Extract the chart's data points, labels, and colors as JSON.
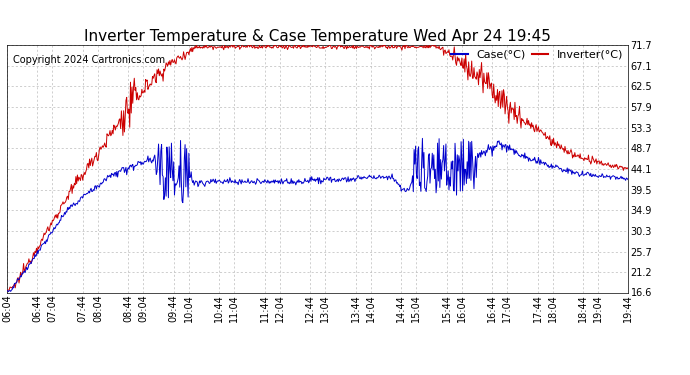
{
  "title": "Inverter Temperature & Case Temperature Wed Apr 24 19:45",
  "copyright": "Copyright 2024 Cartronics.com",
  "legend_case": "Case(°C)",
  "legend_inverter": "Inverter(°C)",
  "case_color": "#0000cc",
  "inverter_color": "#cc0000",
  "background_color": "#ffffff",
  "grid_color": "#bbbbbb",
  "ylim": [
    16.6,
    71.7
  ],
  "yticks": [
    16.6,
    21.2,
    25.7,
    30.3,
    34.9,
    39.5,
    44.1,
    48.7,
    53.3,
    57.9,
    62.5,
    67.1,
    71.7
  ],
  "xtick_labels": [
    "06:04",
    "06:44",
    "07:04",
    "07:44",
    "08:04",
    "08:44",
    "09:04",
    "09:44",
    "10:04",
    "10:44",
    "11:04",
    "11:44",
    "12:04",
    "12:44",
    "13:04",
    "13:44",
    "14:04",
    "14:44",
    "15:04",
    "15:44",
    "16:04",
    "16:44",
    "17:04",
    "17:44",
    "18:04",
    "18:44",
    "19:04",
    "19:44"
  ],
  "title_fontsize": 11,
  "tick_fontsize": 7,
  "copyright_fontsize": 7,
  "legend_fontsize": 8
}
